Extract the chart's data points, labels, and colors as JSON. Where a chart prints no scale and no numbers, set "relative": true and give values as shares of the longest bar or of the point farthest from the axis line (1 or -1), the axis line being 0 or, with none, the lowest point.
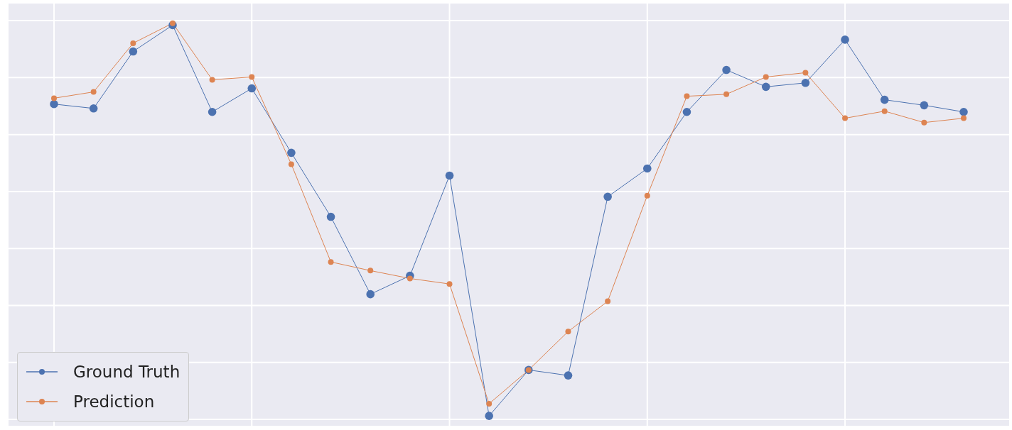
{
  "chart_data": {
    "type": "line",
    "relative": true,
    "categories": [
      null,
      null,
      null,
      null,
      null,
      null,
      null,
      null,
      null,
      null,
      null,
      null,
      null,
      null,
      null,
      null,
      null,
      null,
      null,
      null,
      null,
      null,
      null,
      null
    ],
    "series": [
      {
        "name": "Ground Truth",
        "color": "#4c72b0",
        "values": [
          0.794,
          0.783,
          0.928,
          0.995,
          0.774,
          0.834,
          0.67,
          0.507,
          0.31,
          0.357,
          0.612,
          0,
          0.117,
          0.103,
          0.558,
          0.63,
          0.774,
          0.881,
          0.838,
          0.848,
          0.958,
          0.805,
          0.791,
          0.774
        ]
      },
      {
        "name": "Prediction",
        "color": "#dd8452",
        "values": [
          0.809,
          0.825,
          0.949,
          1,
          0.856,
          0.863,
          0.641,
          0.392,
          0.37,
          0.35,
          0.336,
          0.031,
          0.117,
          0.215,
          0.292,
          0.561,
          0.814,
          0.819,
          0.863,
          0.874,
          0.758,
          0.776,
          0.747,
          0.758
        ]
      }
    ],
    "grid": true,
    "legend": "bottom left",
    "marker": "circle",
    "line_style": "solid"
  }
}
